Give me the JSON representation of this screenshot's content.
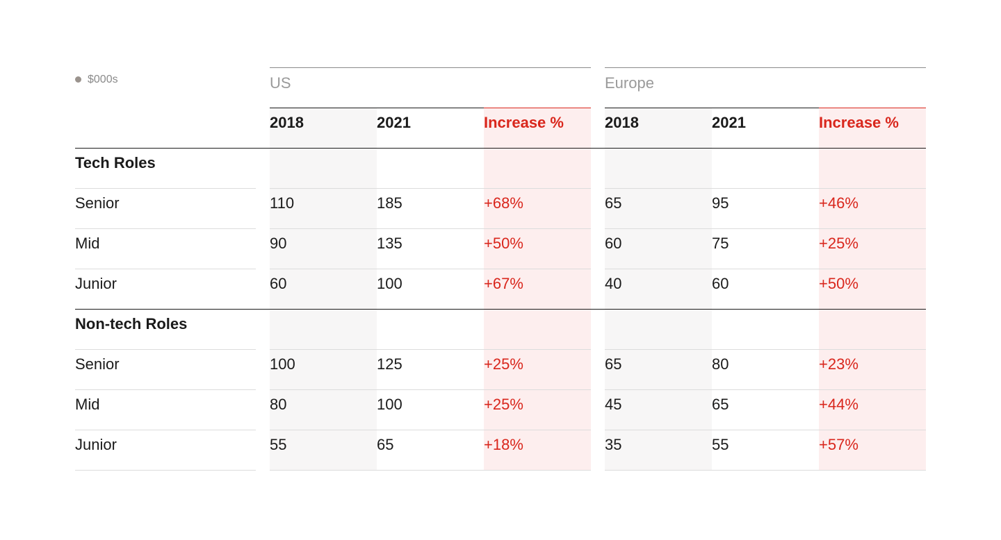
{
  "unit_label": "$000s",
  "colors": {
    "accent": "#d9261c",
    "text": "#1a1a1a",
    "muted": "#9a9a9a",
    "grey_shade": "#f7f6f6",
    "red_shade": "#fdeeee",
    "unit_dot": "#9a938d"
  },
  "chart_data": {
    "type": "table",
    "unit": "$000s",
    "regions": [
      {
        "name": "US",
        "columns": [
          "2018",
          "2021",
          "Increase %"
        ]
      },
      {
        "name": "Europe",
        "columns": [
          "2018",
          "2021",
          "Increase %"
        ]
      }
    ],
    "groups": [
      {
        "title": "Tech Roles",
        "rows": [
          {
            "label": "Senior",
            "values": [
              "110",
              "185",
              "+68%",
              "65",
              "95",
              "+46%"
            ]
          },
          {
            "label": "Mid",
            "values": [
              "90",
              "135",
              "+50%",
              "60",
              "75",
              "+25%"
            ]
          },
          {
            "label": "Junior",
            "values": [
              "60",
              "100",
              "+67%",
              "40",
              "60",
              "+50%"
            ]
          }
        ]
      },
      {
        "title": "Non-tech Roles",
        "rows": [
          {
            "label": "Senior",
            "values": [
              "100",
              "125",
              "+25%",
              "65",
              "80",
              "+23%"
            ]
          },
          {
            "label": "Mid",
            "values": [
              "80",
              "100",
              "+25%",
              "45",
              "65",
              "+44%"
            ]
          },
          {
            "label": "Junior",
            "values": [
              "55",
              "65",
              "+18%",
              "35",
              "55",
              "+57%"
            ]
          }
        ]
      }
    ]
  }
}
